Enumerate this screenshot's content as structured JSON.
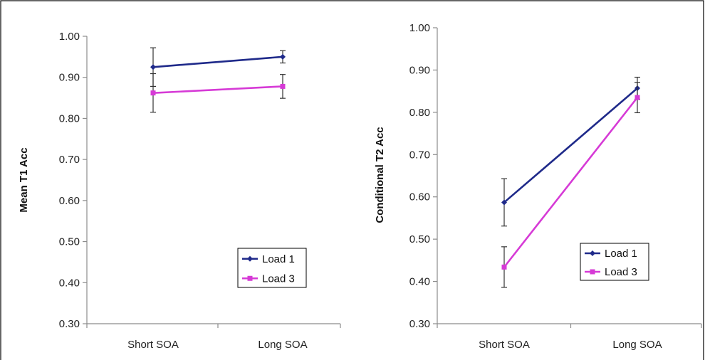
{
  "chart_data": [
    {
      "type": "line",
      "ylabel": "Mean T1 Acc",
      "xlabel": "",
      "categories": [
        "Short SOA",
        "Long SOA"
      ],
      "ylim": [
        0.3,
        1.0
      ],
      "yticks": [
        "0.30",
        "0.40",
        "0.50",
        "0.60",
        "0.70",
        "0.80",
        "0.90",
        "1.00"
      ],
      "grid": false,
      "legend_position": "bottom-right",
      "series": [
        {
          "name": "Load 1",
          "color": "#1f2a8a",
          "marker": "diamond",
          "values": [
            0.925,
            0.95
          ],
          "errors": [
            0.047,
            0.015
          ]
        },
        {
          "name": "Load 3",
          "color": "#d63ad6",
          "marker": "square",
          "values": [
            0.862,
            0.878
          ],
          "errors": [
            0.047,
            0.029
          ]
        }
      ]
    },
    {
      "type": "line",
      "ylabel": "Conditional T2 Acc",
      "xlabel": "",
      "categories": [
        "Short SOA",
        "Long SOA"
      ],
      "ylim": [
        0.3,
        1.0
      ],
      "yticks": [
        "0.30",
        "0.40",
        "0.50",
        "0.60",
        "0.70",
        "0.80",
        "0.90",
        "1.00"
      ],
      "grid": false,
      "legend_position": "bottom-right",
      "series": [
        {
          "name": "Load 1",
          "color": "#1f2a8a",
          "marker": "diamond",
          "values": [
            0.587,
            0.857
          ],
          "errors": [
            0.056,
            0.026
          ]
        },
        {
          "name": "Load 3",
          "color": "#d63ad6",
          "marker": "square",
          "values": [
            0.434,
            0.835
          ],
          "errors": [
            0.048,
            0.036
          ]
        }
      ]
    }
  ]
}
